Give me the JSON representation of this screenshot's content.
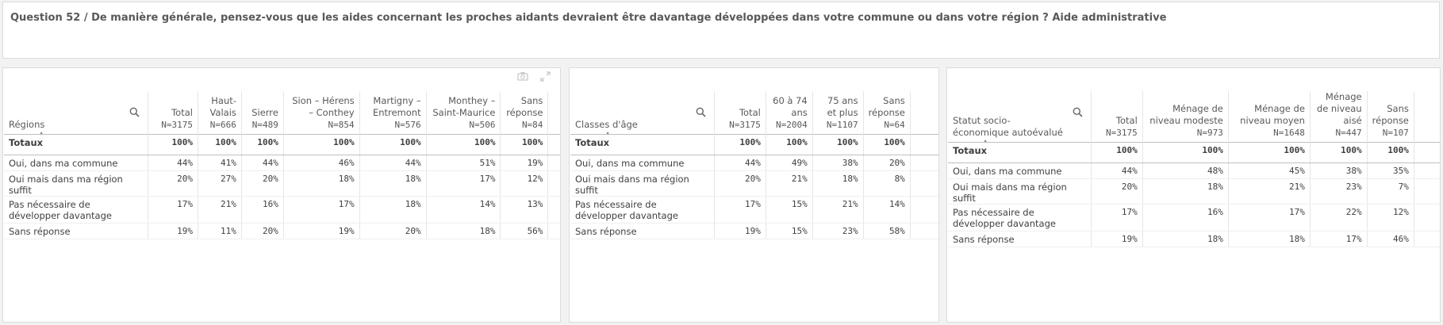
{
  "title": "Question 52 / De manière générale, pensez-vous que les aides concernant les proches aidants devraient être davantage développées dans votre commune ou dans votre région ? Aide administrative",
  "icons": {
    "search": "search-icon",
    "snapshot": "camera-icon",
    "expand": "expand-icon",
    "sort": "sort-ascending-icon"
  },
  "tables": [
    {
      "dimension": "Régions",
      "columns": [
        {
          "label": "Total",
          "n": "N=3175"
        },
        {
          "label": "Haut-Valais",
          "n": "N=666"
        },
        {
          "label": "Sierre",
          "n": "N=489"
        },
        {
          "label": "Sion – Hérens – Conthey",
          "n": "N=854"
        },
        {
          "label": "Martigny – Entremont",
          "n": "N=576"
        },
        {
          "label": "Monthey – Saint-Maurice",
          "n": "N=506"
        },
        {
          "label": "Sans réponse",
          "n": "N=84"
        }
      ],
      "rows": [
        {
          "label": "Totaux",
          "values": [
            "100%",
            "100%",
            "100%",
            "100%",
            "100%",
            "100%",
            "100%"
          ]
        },
        {
          "label": "Oui, dans ma commune",
          "values": [
            "44%",
            "41%",
            "44%",
            "46%",
            "44%",
            "51%",
            "19%"
          ]
        },
        {
          "label": "Oui mais dans ma région suffit",
          "values": [
            "20%",
            "27%",
            "20%",
            "18%",
            "18%",
            "17%",
            "12%"
          ]
        },
        {
          "label": "Pas nécessaire de développer davantage",
          "values": [
            "17%",
            "21%",
            "16%",
            "17%",
            "18%",
            "14%",
            "13%"
          ]
        },
        {
          "label": "Sans réponse",
          "values": [
            "19%",
            "11%",
            "20%",
            "19%",
            "20%",
            "18%",
            "56%"
          ]
        }
      ]
    },
    {
      "dimension": "Classes d'âge",
      "columns": [
        {
          "label": "Total",
          "n": "N=3175"
        },
        {
          "label": "60 à 74 ans",
          "n": "N=2004"
        },
        {
          "label": "75 ans et plus",
          "n": "N=1107"
        },
        {
          "label": "Sans réponse",
          "n": "N=64"
        }
      ],
      "rows": [
        {
          "label": "Totaux",
          "values": [
            "100%",
            "100%",
            "100%",
            "100%"
          ]
        },
        {
          "label": "Oui, dans ma commune",
          "values": [
            "44%",
            "49%",
            "38%",
            "20%"
          ]
        },
        {
          "label": "Oui mais dans ma région suffit",
          "values": [
            "20%",
            "21%",
            "18%",
            "8%"
          ]
        },
        {
          "label": "Pas nécessaire de développer davantage",
          "values": [
            "17%",
            "15%",
            "21%",
            "14%"
          ]
        },
        {
          "label": "Sans réponse",
          "values": [
            "19%",
            "15%",
            "23%",
            "58%"
          ]
        }
      ]
    },
    {
      "dimension": "Statut socio-économique autoévalué",
      "columns": [
        {
          "label": "Total",
          "n": "N=3175"
        },
        {
          "label": "Ménage de niveau modeste",
          "n": "N=973"
        },
        {
          "label": "Ménage de niveau moyen",
          "n": "N=1648"
        },
        {
          "label": "Ménage de niveau aisé",
          "n": "N=447"
        },
        {
          "label": "Sans réponse",
          "n": "N=107"
        }
      ],
      "rows": [
        {
          "label": "Totaux",
          "values": [
            "100%",
            "100%",
            "100%",
            "100%",
            "100%"
          ]
        },
        {
          "label": "Oui, dans ma commune",
          "values": [
            "44%",
            "48%",
            "45%",
            "38%",
            "35%"
          ]
        },
        {
          "label": "Oui mais dans ma région suffit",
          "values": [
            "20%",
            "18%",
            "21%",
            "23%",
            "7%"
          ]
        },
        {
          "label": "Pas nécessaire de développer davantage",
          "values": [
            "17%",
            "16%",
            "17%",
            "22%",
            "12%"
          ]
        },
        {
          "label": "Sans réponse",
          "values": [
            "19%",
            "18%",
            "18%",
            "17%",
            "46%"
          ]
        }
      ]
    }
  ]
}
